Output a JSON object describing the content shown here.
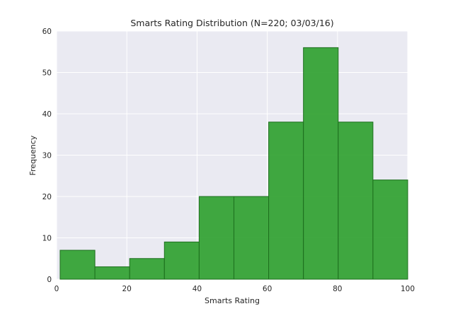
{
  "chart_data": {
    "type": "bar",
    "title": "Smarts Rating Distribution (N=220; 03/03/16)",
    "xlabel": "Smarts Rating",
    "ylabel": "Frequency",
    "xlim": [
      0,
      100
    ],
    "ylim": [
      0,
      60
    ],
    "xticks": [
      0,
      20,
      40,
      60,
      80,
      100
    ],
    "yticks": [
      0,
      10,
      20,
      30,
      40,
      50,
      60
    ],
    "grid": true,
    "bins": [
      {
        "start": 1,
        "end": 10.9,
        "count": 7
      },
      {
        "start": 10.9,
        "end": 20.8,
        "count": 3
      },
      {
        "start": 20.8,
        "end": 30.7,
        "count": 5
      },
      {
        "start": 30.7,
        "end": 40.6,
        "count": 9
      },
      {
        "start": 40.6,
        "end": 50.5,
        "count": 20
      },
      {
        "start": 50.5,
        "end": 60.4,
        "count": 20
      },
      {
        "start": 60.4,
        "end": 70.3,
        "count": 38
      },
      {
        "start": 70.3,
        "end": 80.2,
        "count": 56
      },
      {
        "start": 80.2,
        "end": 90.1,
        "count": 38
      },
      {
        "start": 90.1,
        "end": 100,
        "count": 24
      }
    ],
    "colors": {
      "bar_fill": "#2ca02c",
      "bar_stroke": "#1e6f1e",
      "plot_background": "#eaeaf2",
      "grid": "#ffffff"
    }
  }
}
